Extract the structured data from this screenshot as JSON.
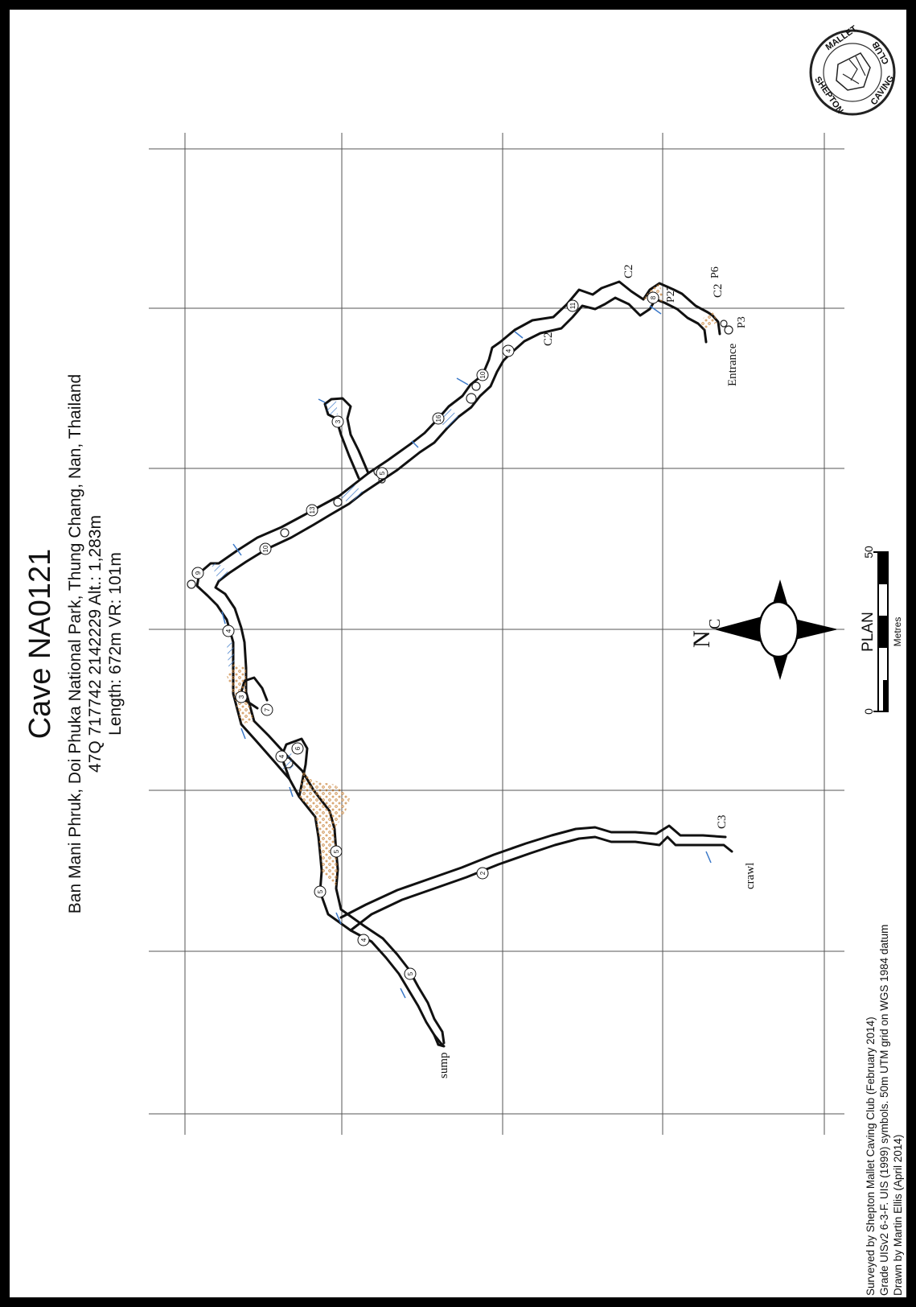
{
  "title": "Cave NA0121",
  "location_line": "Ban Mani Phruk, Doi Phuka National Park, Thung Chang, Nan, Thailand",
  "coordinates_line": "47Q 717742 2142229 Alt.: 1,283m",
  "length_line": "Length: 672m VR: 101m",
  "credits": {
    "surveyed": "Surveyed by Shepton Mallet Caving Club (February 2014)",
    "grade": "Grade UISv2 6-3-F. UIS (1999) symbols. 50m UTM grid on WGS 1984 datum",
    "drawn": "Drawn by Martin Ellis (April 2014)"
  },
  "logo": {
    "text_top": "MALLET",
    "text_right": "CLUB",
    "text_right2": "CAVING",
    "text_left": "SHEPTON"
  },
  "north": {
    "label": "N",
    "sub": "C"
  },
  "scale": {
    "label": "PLAN",
    "unit": "Metres",
    "start": "0",
    "end": "50"
  },
  "labels": {
    "entrance": "Entrance",
    "p27": "P27",
    "p6": "P6",
    "p3": "P3",
    "c2_a": "C2",
    "c2_b": "C2",
    "c2_c": "C2",
    "c3": "C3",
    "crawl": "crawl",
    "sump": "sump"
  },
  "heights": [
    "4",
    "5",
    "6",
    "7",
    "3",
    "4",
    "9",
    "10",
    "13",
    "5",
    "3",
    "16",
    "10",
    "4",
    "11",
    "8",
    "5",
    "4",
    "5",
    "2"
  ],
  "colors": {
    "border": "#000000",
    "passage": "#111111",
    "sand": "#c8833a",
    "water": "#3a78c8",
    "grid": "#555555"
  }
}
